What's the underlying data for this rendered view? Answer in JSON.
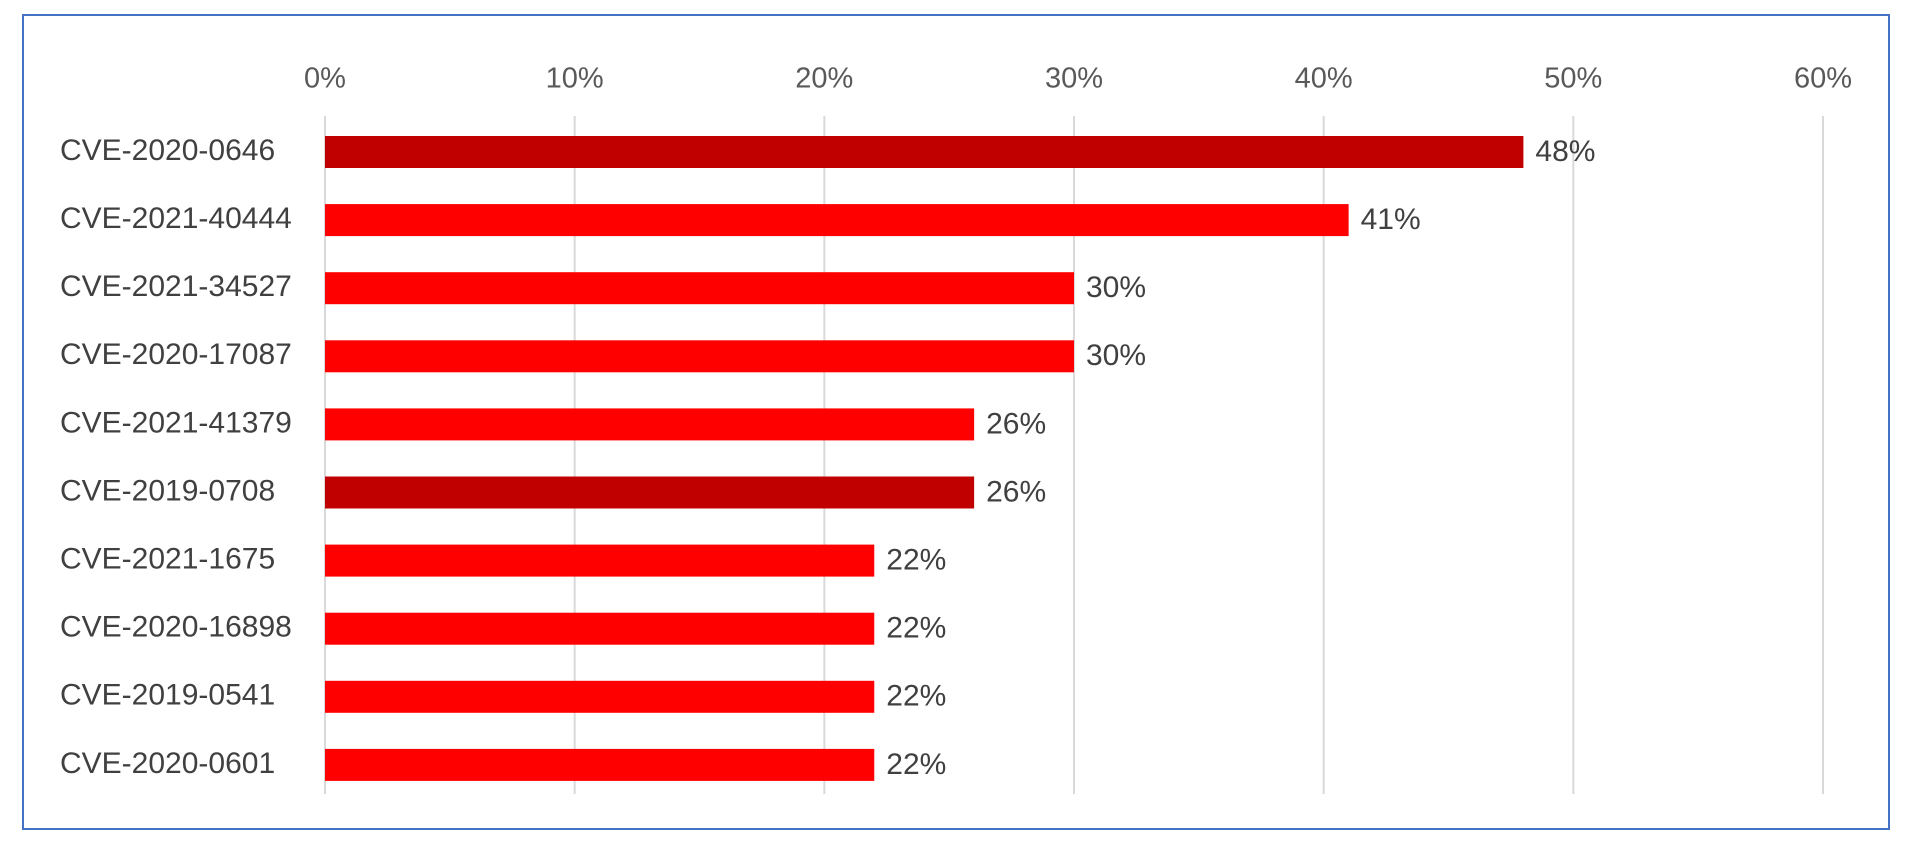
{
  "chart_data": {
    "type": "bar",
    "orientation": "horizontal",
    "title": "",
    "xlabel": "",
    "ylabel": "",
    "xlim": [
      0,
      60
    ],
    "ticks": [
      "0%",
      "10%",
      "20%",
      "30%",
      "40%",
      "50%",
      "60%"
    ],
    "tick_values": [
      0,
      10,
      20,
      30,
      40,
      50,
      60
    ],
    "axis_position": "top",
    "grid": true,
    "legend": "none",
    "categories": [
      "CVE-2020-0646",
      "CVE-2021-40444",
      "CVE-2021-34527",
      "CVE-2020-17087",
      "CVE-2021-41379",
      "CVE-2019-0708",
      "CVE-2021-1675",
      "CVE-2020-16898",
      "CVE-2019-0541",
      "CVE-2020-0601"
    ],
    "values": [
      48,
      41,
      30,
      30,
      26,
      26,
      22,
      22,
      22,
      22
    ],
    "value_labels": [
      "48%",
      "41%",
      "30%",
      "30%",
      "26%",
      "26%",
      "22%",
      "22%",
      "22%",
      "22%"
    ],
    "highlighted": [
      true,
      false,
      false,
      false,
      false,
      true,
      false,
      false,
      false,
      false
    ],
    "colors": {
      "bar": "#ff0000",
      "highlight": "#c00000",
      "frame_border": "#4472c4",
      "grid": "#d9d9d9"
    }
  }
}
